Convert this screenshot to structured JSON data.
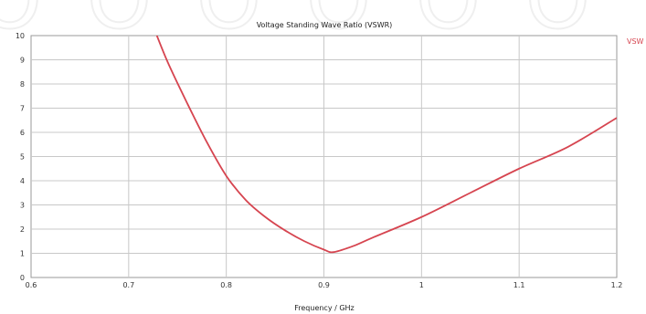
{
  "chart_data": {
    "type": "line",
    "title": "Voltage Standing Wave Ratio (VSWR)",
    "xlabel": "Frequency / GHz",
    "ylabel": "",
    "xlim": [
      0.6,
      1.2
    ],
    "ylim": [
      0,
      10
    ],
    "x_ticks": [
      "0.6",
      "0.7",
      "0.8",
      "0.9",
      "1",
      "1.1",
      "1.2"
    ],
    "y_ticks": [
      "0",
      "1",
      "2",
      "3",
      "4",
      "5",
      "6",
      "7",
      "8",
      "9",
      "10"
    ],
    "grid": true,
    "legend_position": "right-top",
    "series": [
      {
        "name": "VSW",
        "color": "#d64550",
        "x": [
          0.725,
          0.74,
          0.76,
          0.78,
          0.8,
          0.82,
          0.84,
          0.86,
          0.88,
          0.9,
          0.91,
          0.93,
          0.95,
          1.0,
          1.05,
          1.1,
          1.15,
          1.2
        ],
        "y": [
          10.4,
          8.9,
          7.2,
          5.6,
          4.2,
          3.2,
          2.5,
          1.95,
          1.5,
          1.15,
          1.05,
          1.3,
          1.65,
          2.5,
          3.5,
          4.5,
          5.4,
          6.6
        ]
      }
    ]
  },
  "watermark_letters": [
    "O",
    "O",
    "O",
    "O",
    "O",
    "O"
  ]
}
